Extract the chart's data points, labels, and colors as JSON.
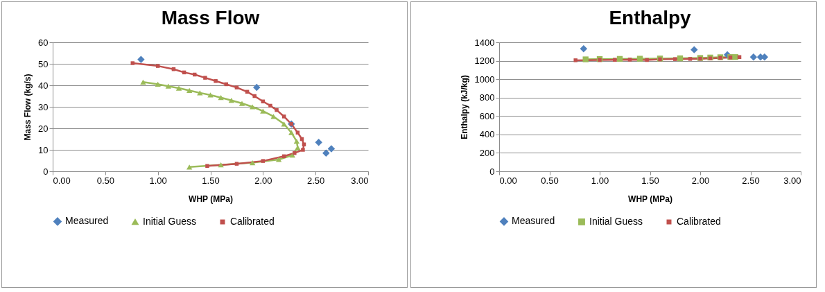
{
  "chart_data": [
    {
      "type": "line",
      "title": "Mass Flow",
      "xlabel": "WHP (MPa)",
      "ylabel": "Mass Flow (kg/s)",
      "xlim": [
        0,
        3
      ],
      "xticks": [
        {
          "value": 0,
          "label": "0.00"
        },
        {
          "value": 0.5,
          "label": "0.50"
        },
        {
          "value": 1,
          "label": "1.00"
        },
        {
          "value": 1.5,
          "label": "1.50"
        },
        {
          "value": 2,
          "label": "2.00"
        },
        {
          "value": 2.5,
          "label": "2.50"
        },
        {
          "value": 3,
          "label": "3.00"
        }
      ],
      "ylim": [
        0,
        60
      ],
      "yticks": [
        0,
        10,
        20,
        30,
        40,
        50,
        60
      ],
      "grid": "y",
      "legend": "bottom",
      "line_style": "solid",
      "series": [
        {
          "name": "Measured",
          "type": "scatter",
          "marker": "diamond",
          "color": "#4f81bd",
          "x": [
            0.84,
            1.94,
            2.27,
            2.53,
            2.6,
            2.65
          ],
          "values": [
            52,
            39,
            22,
            13.5,
            8.5,
            10.5
          ]
        },
        {
          "name": "Initial Guess",
          "type": "line",
          "marker": "triangle",
          "color": "#9bbb59",
          "x": [
            0.86,
            1.0,
            1.1,
            1.2,
            1.3,
            1.4,
            1.5,
            1.6,
            1.7,
            1.8,
            1.9,
            2.0,
            2.1,
            2.2,
            2.27,
            2.32,
            2.33,
            2.28,
            2.15,
            1.9,
            1.6,
            1.3
          ],
          "values": [
            41.5,
            40.5,
            39.6,
            38.7,
            37.6,
            36.5,
            35.5,
            34.3,
            33,
            31.6,
            30,
            28,
            25.5,
            22,
            18,
            14,
            11,
            7.5,
            5.5,
            4,
            3,
            2
          ]
        },
        {
          "name": "Calibrated",
          "type": "line",
          "marker": "square",
          "color": "#c0504d",
          "x": [
            0.76,
            1.0,
            1.15,
            1.25,
            1.35,
            1.45,
            1.55,
            1.65,
            1.75,
            1.85,
            1.92,
            2.0,
            2.07,
            2.13,
            2.2,
            2.27,
            2.33,
            2.37,
            2.39,
            2.38,
            2.3,
            2.2,
            2.0,
            1.75,
            1.47
          ],
          "values": [
            50.3,
            49,
            47.5,
            46,
            45,
            43.5,
            42,
            40.5,
            39,
            37,
            35,
            32.5,
            30.5,
            28.5,
            25.5,
            22,
            18,
            15,
            12.5,
            10,
            8.5,
            7,
            4.8,
            3.5,
            2.5
          ]
        }
      ]
    },
    {
      "type": "line",
      "title": "Enthalpy",
      "xlabel": "WHP (MPa)",
      "ylabel": "Enthalpy (kJ/kg)",
      "xlim": [
        0,
        3
      ],
      "xticks": [
        {
          "value": 0,
          "label": "0.00"
        },
        {
          "value": 0.5,
          "label": "0.50"
        },
        {
          "value": 1,
          "label": "1.00"
        },
        {
          "value": 1.5,
          "label": "1.50"
        },
        {
          "value": 2,
          "label": "2.00"
        },
        {
          "value": 2.5,
          "label": "2.50"
        },
        {
          "value": 3,
          "label": "3.00"
        }
      ],
      "ylim": [
        0,
        1400
      ],
      "yticks": [
        0,
        200,
        400,
        600,
        800,
        1000,
        1200,
        1400
      ],
      "grid": "y",
      "legend": "bottom",
      "line_style": "solid",
      "series": [
        {
          "name": "Measured",
          "type": "scatter",
          "marker": "diamond",
          "color": "#4f81bd",
          "x": [
            0.84,
            1.94,
            2.27,
            2.53,
            2.6,
            2.64
          ],
          "values": [
            1330,
            1320,
            1265,
            1240,
            1240,
            1240
          ]
        },
        {
          "name": "Initial Guess",
          "type": "line",
          "marker": "square",
          "color": "#9bbb59",
          "x": [
            0.86,
            1.0,
            1.2,
            1.4,
            1.6,
            1.8,
            2.0,
            2.1,
            2.2,
            2.3,
            2.35
          ],
          "values": [
            1215,
            1218,
            1220,
            1222,
            1224,
            1226,
            1230,
            1235,
            1238,
            1240,
            1240
          ]
        },
        {
          "name": "Calibrated",
          "type": "line",
          "marker": "square",
          "color": "#c0504d",
          "x": [
            0.76,
            1.0,
            1.15,
            1.3,
            1.47,
            1.6,
            1.75,
            1.9,
            2.0,
            2.1,
            2.2,
            2.3,
            2.39
          ],
          "values": [
            1205,
            1208,
            1210,
            1212,
            1208,
            1215,
            1218,
            1220,
            1222,
            1225,
            1230,
            1235,
            1240
          ]
        }
      ]
    }
  ]
}
